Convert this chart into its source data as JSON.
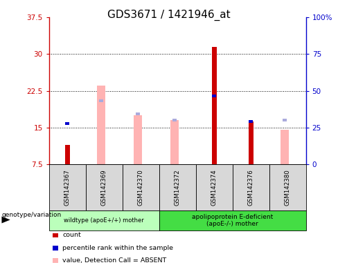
{
  "title": "GDS3671 / 1421946_at",
  "samples": [
    "GSM142367",
    "GSM142369",
    "GSM142370",
    "GSM142372",
    "GSM142374",
    "GSM142376",
    "GSM142380"
  ],
  "ylim_left": [
    7.5,
    37.5
  ],
  "ylim_right": [
    0,
    100
  ],
  "yticks_left": [
    7.5,
    15.0,
    22.5,
    30.0,
    37.5
  ],
  "yticks_right": [
    0,
    25,
    50,
    75,
    100
  ],
  "red_bars": [
    11.5,
    0,
    0,
    0,
    31.5,
    16.2,
    0
  ],
  "blue_squares_val": [
    15.8,
    0,
    0,
    0,
    21.5,
    16.2,
    0
  ],
  "pink_bars": [
    0,
    23.5,
    17.5,
    16.5,
    0,
    0,
    14.5
  ],
  "light_blue_squares_val": [
    0,
    20.5,
    17.8,
    16.5,
    0,
    0,
    16.5
  ],
  "group1_label": "wildtype (apoE+/+) mother",
  "group2_label": "apolipoprotein E-deficient\n(apoE-/-) mother",
  "group1_count": 3,
  "group2_count": 4,
  "color_red": "#cc0000",
  "color_pink": "#ffb3b3",
  "color_blue": "#0000cc",
  "color_lightblue": "#aaaadd",
  "color_group1": "#bbffbb",
  "color_group2": "#44dd44",
  "color_gray": "#d8d8d8",
  "bg_color": "#ffffff",
  "title_fontsize": 11,
  "tick_fontsize": 7.5
}
